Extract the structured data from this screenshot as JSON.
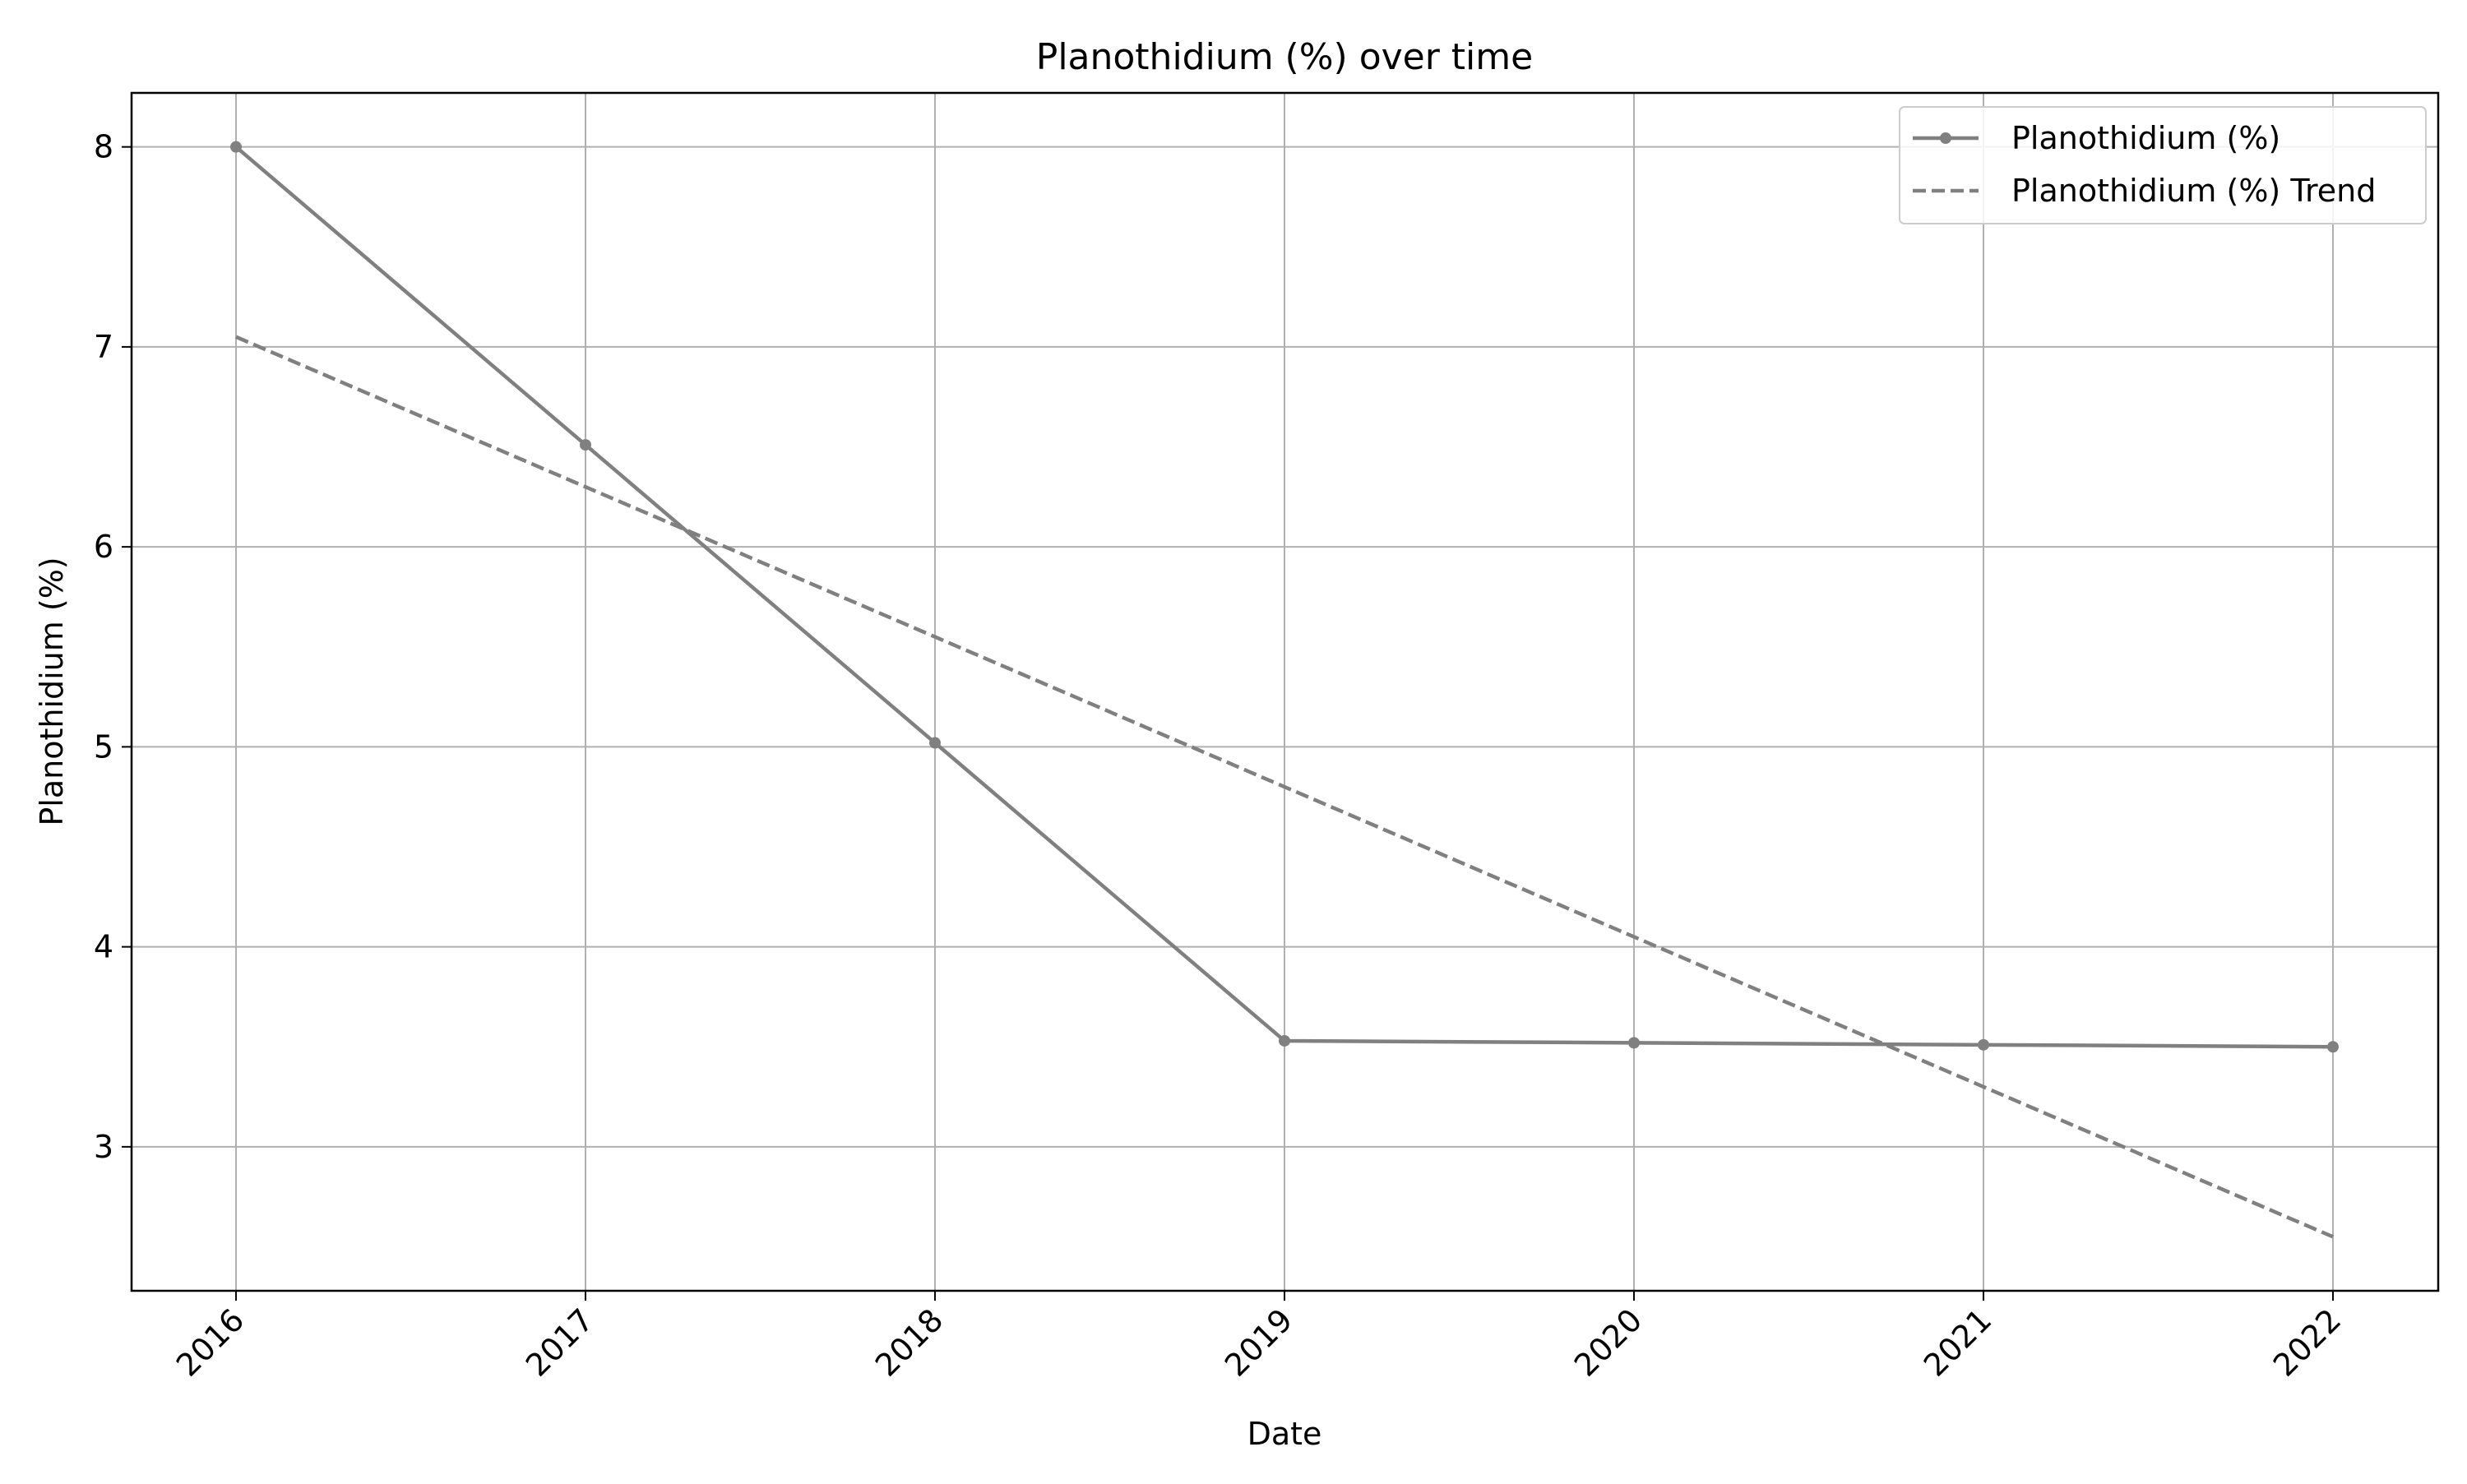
{
  "chart_data": {
    "type": "line",
    "title": "Planothidium (%) over time",
    "xlabel": "Date",
    "ylabel": "Planothidium (%)",
    "x": [
      "2016",
      "2017",
      "2018",
      "2019",
      "2020",
      "2021",
      "2022"
    ],
    "ylim": [
      2.28,
      8.27
    ],
    "yticks": [
      3,
      4,
      5,
      6,
      7,
      8
    ],
    "grid": true,
    "legend_position": "top-right",
    "series": [
      {
        "name": "Planothidium (%)",
        "style": "solid-with-markers",
        "color": "#808080",
        "values": [
          8.0,
          6.51,
          5.02,
          3.53,
          3.52,
          3.51,
          3.5
        ]
      },
      {
        "name": "Planothidium (%) Trend",
        "style": "dashed",
        "color": "#808080",
        "values": [
          7.05,
          6.3,
          5.55,
          4.8,
          4.05,
          3.3,
          2.55
        ]
      }
    ]
  }
}
